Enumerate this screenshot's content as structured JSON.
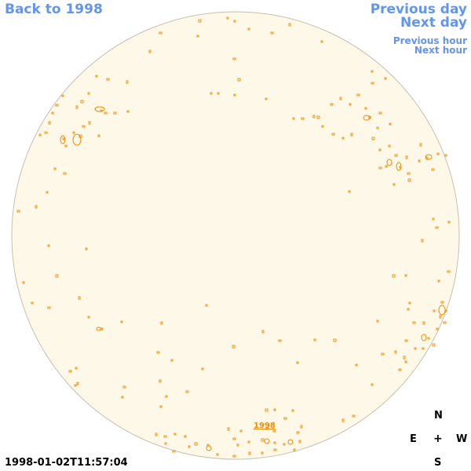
{
  "nav": {
    "back_label": "Back to 1998",
    "prev_day_label": "Previous day",
    "next_day_label": "Next day",
    "prev_hour_label": "Previous hour",
    "next_hour_label": "Next hour",
    "link_color": "#6495ed"
  },
  "sun": {
    "disk_color": "#fdf8e8",
    "limb_color": "#c8c0b0",
    "feature_color": "#f08c00",
    "year_label": "1998"
  },
  "compass": {
    "north": "N",
    "east": "E",
    "center": "+",
    "west": "W",
    "south": "S"
  },
  "footer": {
    "timestamp": "1998-01-02T11:57:04"
  }
}
